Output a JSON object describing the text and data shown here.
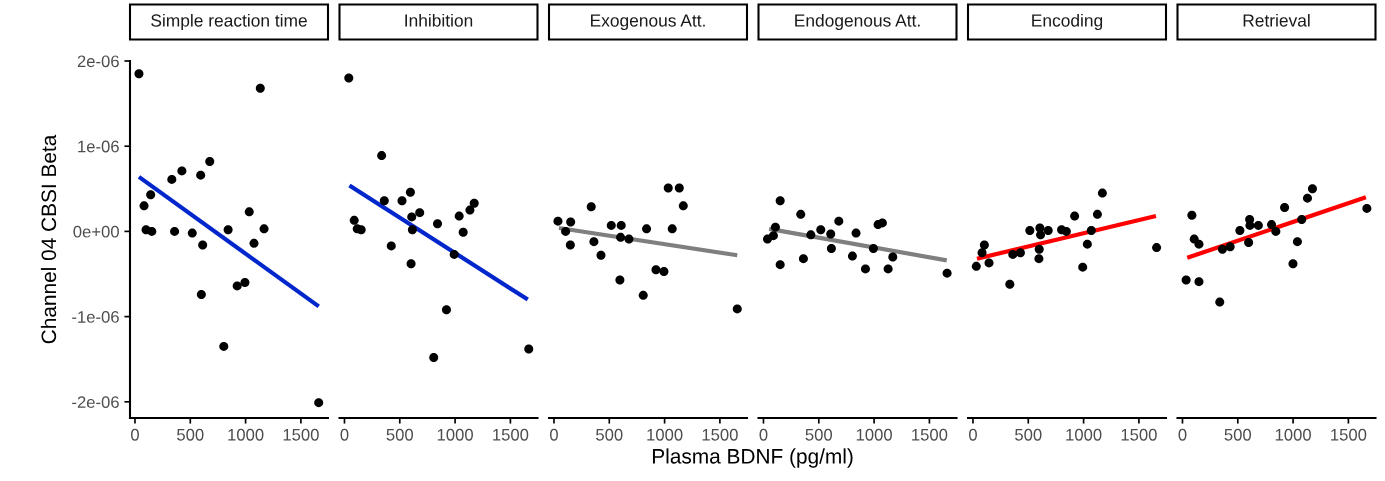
{
  "chart_data": [
    {
      "type": "scatter",
      "title": "Simple reaction time",
      "ylabel": "Channel 04 CBSI Beta",
      "xlim": [
        -45,
        1745
      ],
      "xticks": [
        0,
        500,
        1000,
        1500
      ],
      "ylim": [
        -2.19e-06,
        2e-06
      ],
      "yticks": [
        {
          "value": -2e-06,
          "label": "-2e-06"
        },
        {
          "value": -1e-06,
          "label": "-1e-06"
        },
        {
          "value": 0,
          "label": "0e+00"
        },
        {
          "value": 1e-06,
          "label": "1e-06"
        },
        {
          "value": 2e-06,
          "label": "2e-06"
        }
      ],
      "grid": false,
      "series": [
        {
          "type": "scatter",
          "marker": "circle",
          "color": "#000000",
          "x": [
            36,
            82,
            142,
            100,
            152,
            333,
            424,
            358,
            518,
            594,
            676,
            612,
            600,
            842,
            803,
            924,
            994,
            1033,
            1076,
            1133,
            1167,
            1661
          ],
          "values": [
            1.85e-06,
            3e-07,
            4.3e-07,
            2e-08,
            0,
            6.1e-07,
            7.1e-07,
            0,
            -2e-08,
            6.6e-07,
            8.2e-07,
            -1.6e-07,
            -7.4e-07,
            2e-08,
            -1.35e-06,
            -6.4e-07,
            -6e-07,
            2.3e-07,
            -1.4e-07,
            1.68e-06,
            3e-08,
            -2.01e-06
          ]
        },
        {
          "type": "line",
          "color": "#0026cc",
          "x": [
            36,
            1661
          ],
          "values": [
            6.4e-07,
            -8.8e-07
          ]
        }
      ]
    },
    {
      "type": "scatter",
      "title": "Inhibition",
      "xlim": [
        -45,
        1745
      ],
      "xticks": [
        0,
        500,
        1000,
        1500
      ],
      "ylim": [
        -2.19e-06,
        2e-06
      ],
      "tick_labels": "x",
      "grid": false,
      "series": [
        {
          "type": "scatter",
          "marker": "circle",
          "color": "#000000",
          "x": [
            39,
            336,
            88,
            115,
            151,
            360,
            423,
            520,
            596,
            608,
            614,
            680,
            602,
            841,
            992,
            922,
            807,
            1037,
            1073,
            1134,
            1173,
            1666
          ],
          "values": [
            1.8e-06,
            8.9e-07,
            1.3e-07,
            3e-08,
            2e-08,
            3.6e-07,
            -1.7e-07,
            3.6e-07,
            4.6e-07,
            1.7e-07,
            2e-08,
            2.2e-07,
            -3.8e-07,
            9e-08,
            -2.7e-07,
            -9.2e-07,
            -1.48e-06,
            1.8e-07,
            -1e-08,
            2.5e-07,
            3.3e-07,
            -1.38e-06
          ]
        },
        {
          "type": "line",
          "color": "#0026cc",
          "x": [
            45,
            1657
          ],
          "values": [
            5.4e-07,
            -8e-07
          ]
        }
      ]
    },
    {
      "type": "scatter",
      "title": "Exogenous Att.",
      "xlim": [
        -45,
        1745
      ],
      "xticks": [
        0,
        500,
        1000,
        1500
      ],
      "ylim": [
        -2.19e-06,
        2e-06
      ],
      "tick_labels": "x",
      "grid": false,
      "series": [
        {
          "type": "scatter",
          "marker": "circle",
          "color": "#000000",
          "x": [
            36,
            105,
            151,
            148,
            337,
            361,
            425,
            518,
            608,
            602,
            678,
            596,
            837,
            807,
            922,
            994,
            1033,
            1133,
            1069,
            1169,
            1657
          ],
          "values": [
            1.2e-07,
            0,
            1.1e-07,
            -1.6e-07,
            2.9e-07,
            -1.2e-07,
            -2.8e-07,
            7e-08,
            7e-08,
            -7e-08,
            -9e-08,
            -5.7e-07,
            3e-08,
            -7.5e-07,
            -4.5e-07,
            -4.7e-07,
            5.1e-07,
            5.1e-07,
            3e-08,
            3e-07,
            -9.1e-07
          ]
        },
        {
          "type": "line",
          "color": "#7f7f7f",
          "x": [
            45,
            1657
          ],
          "values": [
            4e-08,
            -2.8e-07
          ]
        }
      ]
    },
    {
      "type": "scatter",
      "title": "Endogenous Att.",
      "xlabel": "Plasma BDNF (pg/ml)",
      "xlim": [
        -45,
        1745
      ],
      "xticks": [
        0,
        500,
        1000,
        1500
      ],
      "ylim": [
        -2.19e-06,
        2e-06
      ],
      "tick_labels": "x",
      "grid": false,
      "series": [
        {
          "type": "scatter",
          "marker": "circle",
          "color": "#000000",
          "x": [
            36,
            90,
            108,
            151,
            151,
            337,
            361,
            428,
            518,
            608,
            614,
            681,
            804,
            837,
            922,
            994,
            1036,
            1075,
            1127,
            1169,
            1660
          ],
          "values": [
            -9e-08,
            -5e-08,
            5e-08,
            3.6e-07,
            -3.9e-07,
            2e-07,
            -3.2e-07,
            -4e-08,
            2e-08,
            -3e-08,
            -2e-07,
            1.2e-07,
            -2.9e-07,
            -2e-08,
            -4.4e-07,
            -2e-07,
            8e-08,
            1e-07,
            -4.4e-07,
            -3e-07,
            -4.9e-07
          ]
        },
        {
          "type": "line",
          "color": "#7f7f7f",
          "x": [
            51,
            1657
          ],
          "values": [
            3e-08,
            -3.4e-07
          ]
        }
      ]
    },
    {
      "type": "scatter",
      "title": "Encoding",
      "xlim": [
        -45,
        1745
      ],
      "xticks": [
        0,
        500,
        1000,
        1500
      ],
      "ylim": [
        -2.19e-06,
        2e-06
      ],
      "tick_labels": "x",
      "grid": false,
      "series": [
        {
          "type": "scatter",
          "marker": "circle",
          "color": "#000000",
          "x": [
            30,
            82,
            103,
            145,
            333,
            360,
            429,
            514,
            605,
            611,
            680,
            599,
            596,
            801,
            844,
            919,
            992,
            1034,
            1070,
            1125,
            1170,
            1660
          ],
          "values": [
            -4.1e-07,
            -2.5e-07,
            -1.6e-07,
            -3.7e-07,
            -6.2e-07,
            -2.7e-07,
            -2.5e-07,
            1e-08,
            4e-08,
            -4e-08,
            1e-08,
            -2.1e-07,
            -3.2e-07,
            2e-08,
            0,
            1.8e-07,
            -4.2e-07,
            -1.5e-07,
            1e-08,
            2e-07,
            4.5e-07,
            -1.9e-07
          ]
        },
        {
          "type": "line",
          "color": "#ff0000",
          "x": [
            36,
            1654
          ],
          "values": [
            -3.2e-07,
            1.8e-07
          ]
        }
      ]
    },
    {
      "type": "scatter",
      "title": "Retrieval",
      "xlim": [
        -45,
        1745
      ],
      "xticks": [
        0,
        500,
        1000,
        1500
      ],
      "ylim": [
        -2.19e-06,
        2e-06
      ],
      "tick_labels": "x",
      "grid": false,
      "series": [
        {
          "type": "scatter",
          "marker": "circle",
          "color": "#000000",
          "x": [
            33,
            85,
            106,
            149,
            149,
            337,
            361,
            431,
            519,
            607,
            610,
            598,
            686,
            805,
            844,
            923,
            999,
            1039,
            1078,
            1130,
            1175,
            1667
          ],
          "values": [
            -5.7e-07,
            1.9e-07,
            -9e-08,
            -1.5e-07,
            -5.9e-07,
            -8.3e-07,
            -2.1e-07,
            -1.8e-07,
            1e-08,
            1.4e-07,
            7e-08,
            -1.3e-07,
            7e-08,
            8e-08,
            0,
            2.8e-07,
            -3.8e-07,
            -1.2e-07,
            1.4e-07,
            3.9e-07,
            5e-07,
            2.7e-07
          ]
        },
        {
          "type": "line",
          "color": "#ff0000",
          "x": [
            43,
            1658
          ],
          "values": [
            -3.1e-07,
            4e-07
          ]
        }
      ]
    }
  ]
}
